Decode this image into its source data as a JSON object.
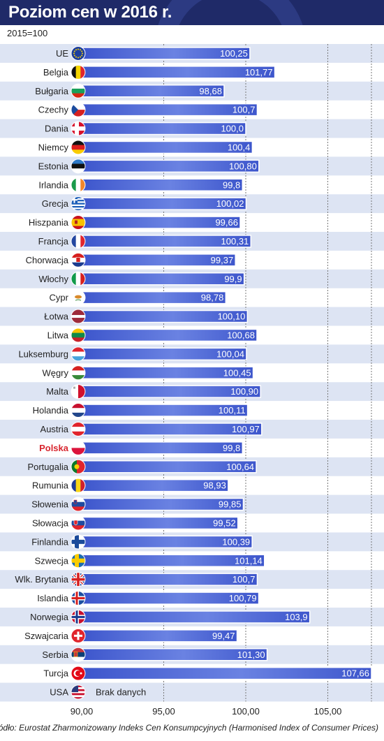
{
  "header": {
    "title": "Poziom cen w 2016 r."
  },
  "subtitle": "2015=100",
  "source": "Źródło: Eurostat Zharmonizowany Indeks Cen Konsumpcyjnych (Harmonised Index of Consumer Prices)",
  "colors": {
    "header": "#1f2a68",
    "bar": "#3d56cc",
    "bar_light": "#6a82e2",
    "stripe": "#dde4f3",
    "highlight_label": "#d8262f",
    "grid": "#777777"
  },
  "chart_data": {
    "type": "bar",
    "orientation": "horizontal",
    "title": "Poziom cen w 2016 r.",
    "subtitle": "2015=100",
    "xlim": [
      90,
      107.66
    ],
    "x_ticks": [
      "90,00",
      "95,00",
      "100,00",
      "105,00"
    ],
    "x_tick_values": [
      90,
      95,
      100,
      105
    ],
    "grid": "vertical dashed",
    "highlight": "Polska",
    "no_data_label": "Brak danych",
    "categories": [
      "UE",
      "Belgia",
      "Bułgaria",
      "Czechy",
      "Dania",
      "Niemcy",
      "Estonia",
      "Irlandia",
      "Grecja",
      "Hiszpania",
      "Francja",
      "Chorwacja",
      "Włochy",
      "Cypr",
      "Łotwa",
      "Litwa",
      "Luksemburg",
      "Węgry",
      "Malta",
      "Holandia",
      "Austria",
      "Polska",
      "Portugalia",
      "Rumunia",
      "Słowenia",
      "Słowacja",
      "Finlandia",
      "Szwecja",
      "Wlk. Brytania",
      "Islandia",
      "Norwegia",
      "Szwajcaria",
      "Serbia",
      "Turcja",
      "USA"
    ],
    "values": [
      100.25,
      101.77,
      98.68,
      100.7,
      100.0,
      100.4,
      100.8,
      99.8,
      100.02,
      99.66,
      100.31,
      99.37,
      99.9,
      98.78,
      100.1,
      100.68,
      100.04,
      100.45,
      100.9,
      100.11,
      100.97,
      99.8,
      100.64,
      98.93,
      99.85,
      99.52,
      100.39,
      101.14,
      100.7,
      100.79,
      103.9,
      99.47,
      101.3,
      107.66,
      null
    ],
    "value_labels": [
      "100,25",
      "101,77",
      "98,68",
      "100,7",
      "100,0",
      "100,4",
      "100,80",
      "99,8",
      "100,02",
      "99,66",
      "100,31",
      "99,37",
      "99,9",
      "98,78",
      "100,10",
      "100,68",
      "100,04",
      "100,45",
      "100,90",
      "100,11",
      "100,97",
      "99,8",
      "100,64",
      "98,93",
      "99,85",
      "99,52",
      "100,39",
      "101,14",
      "100,7",
      "100,79",
      "103,9",
      "99,47",
      "101,30",
      "107,66",
      "Brak danych"
    ],
    "flags": [
      "eu-flag-icon",
      "belgium-flag-icon",
      "bulgaria-flag-icon",
      "czech-flag-icon",
      "denmark-flag-icon",
      "germany-flag-icon",
      "estonia-flag-icon",
      "ireland-flag-icon",
      "greece-flag-icon",
      "spain-flag-icon",
      "france-flag-icon",
      "croatia-flag-icon",
      "italy-flag-icon",
      "cyprus-flag-icon",
      "latvia-flag-icon",
      "lithuania-flag-icon",
      "luxembourg-flag-icon",
      "hungary-flag-icon",
      "malta-flag-icon",
      "netherlands-flag-icon",
      "austria-flag-icon",
      "poland-flag-icon",
      "portugal-flag-icon",
      "romania-flag-icon",
      "slovenia-flag-icon",
      "slovakia-flag-icon",
      "finland-flag-icon",
      "sweden-flag-icon",
      "uk-flag-icon",
      "iceland-flag-icon",
      "norway-flag-icon",
      "switzerland-flag-icon",
      "serbia-flag-icon",
      "turkey-flag-icon",
      "usa-flag-icon"
    ]
  }
}
